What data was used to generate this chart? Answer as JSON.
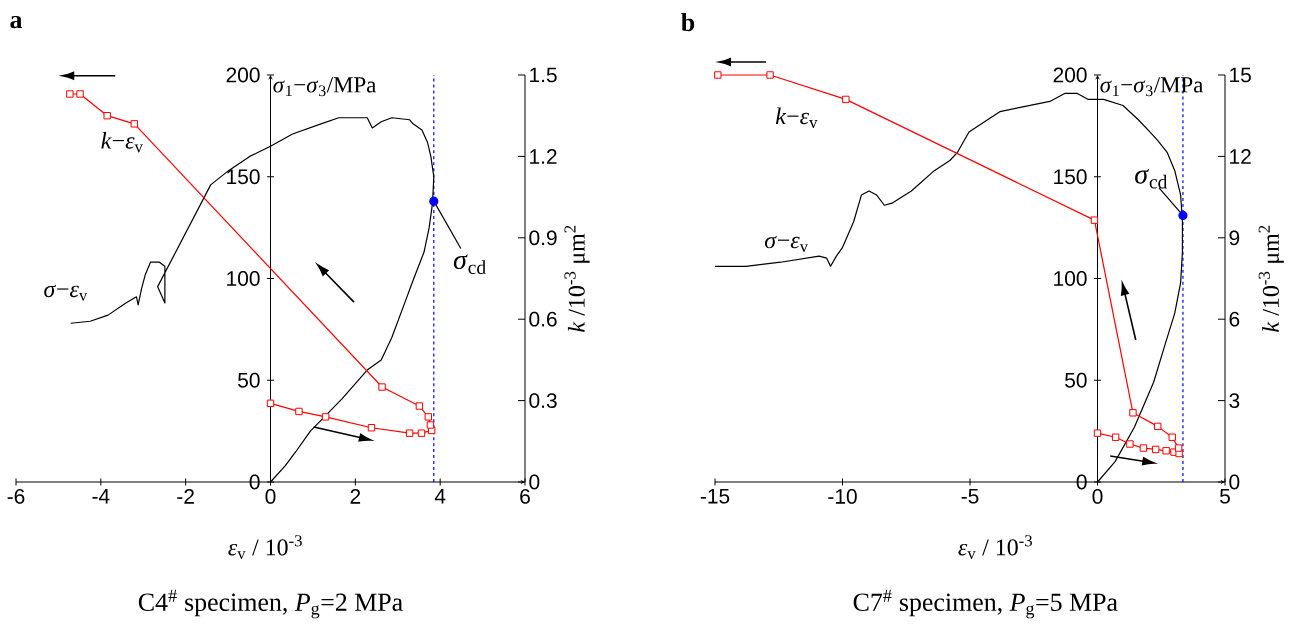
{
  "chart_data": [
    {
      "type": "line",
      "title": "C4$^{#}$ specimen, *P*$_{g}$=2 MPa",
      "xlabel": "*ε*$_{v}$ / 10$^{-3}$",
      "ylabel": "*σ*$_{1}$−*σ*$_{3}$/MPa",
      "y2label": "*k* /10$^{-3}$ μm$^{2}$",
      "xlim": [
        -6,
        6
      ],
      "xticks": [
        -6,
        -4,
        -2,
        0,
        2,
        4,
        6
      ],
      "ylim": [
        0,
        200
      ],
      "yticks": [
        0,
        50,
        100,
        150,
        200
      ],
      "y2lim": [
        0,
        1.5
      ],
      "y2ticks": [
        0,
        0.3,
        0.6,
        0.9,
        1.2,
        1.5
      ],
      "series": [
        {
          "name": "*σ*−*ε*$_{v}$",
          "color": "#000000",
          "marker": "none",
          "x": [
            0,
            0.35,
            0.6,
            0.94,
            1.27,
            1.69,
            2.28,
            2.61,
            2.86,
            3.2,
            3.36,
            3.62,
            3.74,
            3.82,
            3.85,
            3.78,
            3.7,
            3.57,
            3.36,
            3.28,
            2.86,
            2.61,
            2.4,
            2.28,
            1.61,
            1.19,
            0.52,
            0,
            -0.49,
            -0.99,
            -1.41,
            -2.66,
            -2.49,
            -2.49,
            -2.62,
            -2.83,
            -2.95,
            -3.04,
            -3.12,
            -3.16,
            -3.41,
            -3.83,
            -4.25,
            -4.71
          ],
          "values": [
            0,
            8,
            15,
            25,
            32,
            41,
            55,
            60,
            71,
            90,
            99,
            113,
            125,
            137,
            150,
            160,
            167,
            173,
            176,
            178,
            179,
            177,
            174,
            179,
            179,
            176,
            171,
            165,
            160,
            153,
            146,
            96,
            88,
            106,
            108,
            108,
            102,
            95,
            87,
            91,
            88,
            82,
            79,
            78
          ]
        },
        {
          "name": "*k*−*ε*$_{v}$",
          "color": "#ff0000",
          "marker": "square",
          "axis": "y2",
          "x": [
            0,
            0.67,
            1.3,
            2.38,
            3.28,
            3.56,
            3.8,
            3.77,
            3.72,
            3.51,
            2.63,
            -3.21,
            -3.85,
            -4.49,
            -4.73
          ],
          "values": [
            0.29,
            0.26,
            0.24,
            0.2,
            0.18,
            0.18,
            0.19,
            0.21,
            0.24,
            0.28,
            0.35,
            1.32,
            1.35,
            1.43,
            1.43
          ]
        },
        {
          "type": "scatter",
          "color": "#0000ff",
          "marker": "circle",
          "x": [
            3.85
          ],
          "values": [
            138
          ]
        }
      ],
      "ref_lines": [
        {
          "axis": "x",
          "value": 3.85,
          "color": "#0000ff",
          "line_style": "dashed"
        }
      ],
      "annotations": [
        "a",
        {
          "text": "*σ*$_{cd}$",
          "x": 3.85,
          "y": 138
        }
      ]
    },
    {
      "type": "line",
      "title": "C7$^{#}$ specimen, *P*$_{g}$=5 MPa",
      "xlabel": "*ε*$_{v}$ / 10$^{-3}$",
      "ylabel": "*σ*$_{1}$−*σ*$_{3}$/MPa",
      "y2label": "*k* /10$^{-3}$ μm$^{2}$",
      "xlim": [
        -15,
        5
      ],
      "xticks": [
        -15,
        -10,
        -5,
        0,
        5
      ],
      "ylim": [
        0,
        200
      ],
      "yticks": [
        0,
        50,
        100,
        150,
        200
      ],
      "y2lim": [
        0,
        15
      ],
      "y2ticks": [
        0,
        3,
        6,
        9,
        12,
        15
      ],
      "series": [
        {
          "name": "*σ*−*ε*$_{v}$",
          "color": "#000000",
          "marker": "none",
          "x": [
            0,
            0.69,
            1.45,
            2.2,
            2.66,
            3.03,
            3.26,
            3.33,
            3.33,
            3.26,
            3.03,
            2.73,
            2.35,
            1.98,
            1.6,
            1.0,
            0.24,
            -0.36,
            -0.81,
            -1.27,
            -1.87,
            -3.08,
            -3.83,
            -4.43,
            -5.04,
            -5.49,
            -5.79,
            -6.4,
            -7.3,
            -8.06,
            -8.36,
            -8.66,
            -8.96,
            -9.26,
            -9.56,
            -10.01,
            -10.24,
            -10.47,
            -10.62,
            -10.92,
            -12.43,
            -13.79,
            -15.0
          ],
          "values": [
            0,
            10,
            27,
            49,
            68,
            83,
            98,
            113,
            128,
            141,
            153,
            162,
            168,
            173,
            178,
            185,
            188,
            188,
            191,
            191,
            187,
            184,
            182,
            177,
            172,
            162,
            158,
            153,
            143,
            137,
            136,
            141,
            143,
            141,
            128,
            115,
            111,
            106,
            110,
            111,
            108,
            106,
            106
          ]
        },
        {
          "name": "*k*−*ε*$_{v}$",
          "color": "#ff0000",
          "marker": "square",
          "axis": "y2",
          "x": [
            0,
            0.71,
            1.27,
            1.8,
            2.28,
            2.69,
            3.0,
            3.2,
            3.18,
            2.93,
            2.36,
            1.39,
            -0.12,
            -9.87,
            -12.84,
            -14.89
          ],
          "values": [
            1.8,
            1.65,
            1.4,
            1.25,
            1.2,
            1.15,
            1.1,
            1.05,
            1.25,
            1.65,
            2.05,
            2.55,
            9.65,
            14.1,
            15.0,
            15.0
          ]
        },
        {
          "type": "scatter",
          "color": "#0000ff",
          "marker": "circle",
          "x": [
            3.35
          ],
          "values": [
            131
          ]
        }
      ],
      "ref_lines": [
        {
          "axis": "x",
          "value": 3.35,
          "color": "#0000ff",
          "line_style": "dashed"
        }
      ],
      "annotations": [
        "b",
        {
          "text": "*σ*$_{cd}$",
          "x": 3.35,
          "y": 131
        }
      ]
    }
  ]
}
